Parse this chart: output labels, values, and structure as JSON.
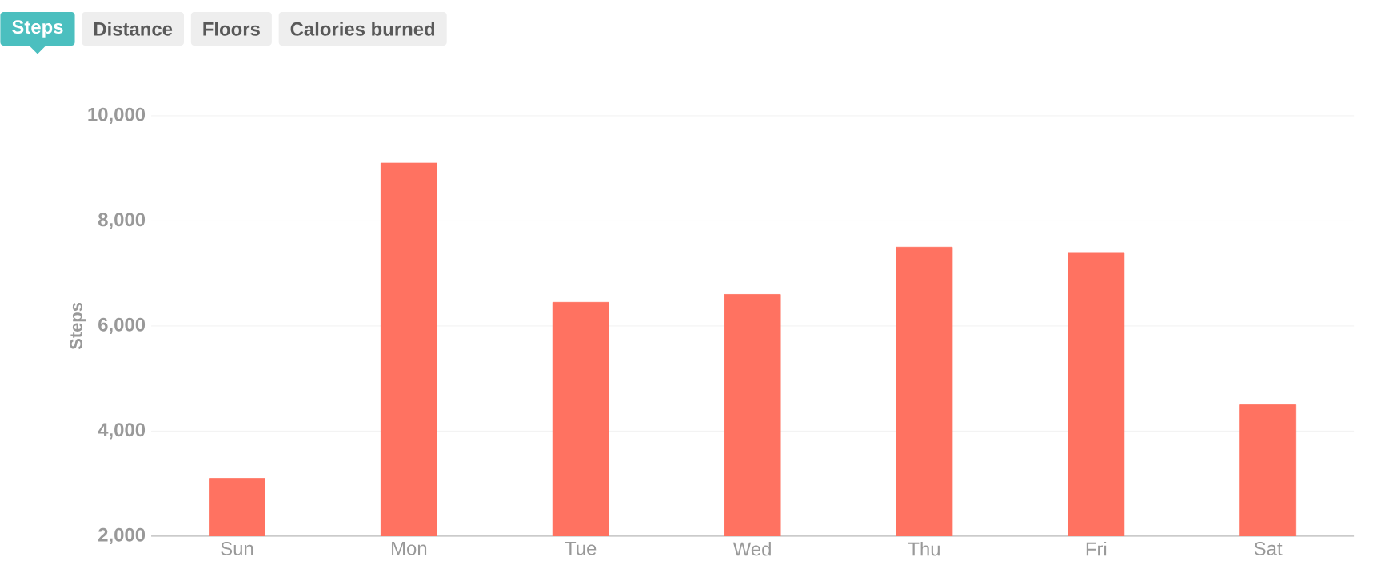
{
  "chart_data": {
    "type": "bar",
    "ylabel": "Steps",
    "annotations": [
      "Steps",
      "Distance",
      "Floors",
      "Calories burned"
    ],
    "categories": [
      "Sun",
      "Mon",
      "Tue",
      "Wed",
      "Thu",
      "Fri",
      "Sat"
    ],
    "values": [
      3100,
      9100,
      6450,
      6600,
      7500,
      7400,
      4500
    ],
    "color": "#ff7261",
    "ylim": [
      2000,
      10000
    ],
    "yticks": [
      {
        "value": 2000,
        "label": "2,000"
      },
      {
        "value": 4000,
        "label": "4,000"
      },
      {
        "value": 6000,
        "label": "6,000"
      },
      {
        "value": 8000,
        "label": "8,000"
      },
      {
        "value": 10000,
        "label": "10,000"
      }
    ],
    "grid": "y"
  }
}
